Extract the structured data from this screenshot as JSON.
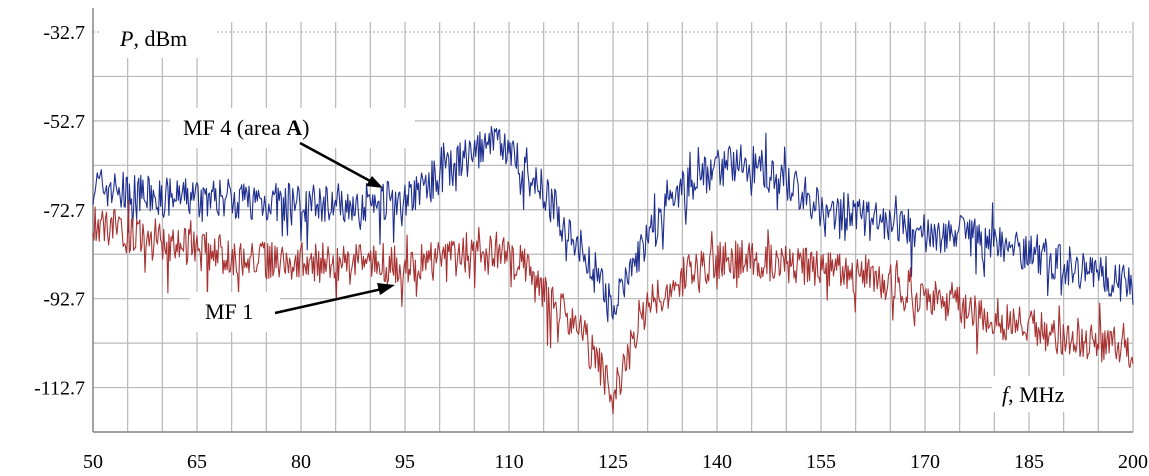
{
  "chart_data": {
    "type": "line",
    "x_range": [
      50,
      200
    ],
    "y_range": [
      -122.7,
      -32.7
    ],
    "x_ticks": [
      "50",
      "65",
      "80",
      "95",
      "110",
      "125",
      "140",
      "155",
      "170",
      "185",
      "200"
    ],
    "y_ticks": [
      "-32.7",
      "-52.7",
      "-72.7",
      "-92.7",
      "-112.7"
    ],
    "ylabel_var": "P",
    "ylabel_unit": ", dBm",
    "xlabel_var": "f",
    "xlabel_unit": ", MHz",
    "grid": true,
    "series": [
      {
        "name": "MF 4 (area A)",
        "color": "#1f2f8f",
        "x": [
          50,
          55,
          60,
          65,
          70,
          75,
          80,
          85,
          90,
          95,
          100,
          105,
          108,
          110,
          113,
          116,
          119,
          121,
          123,
          125,
          127,
          130,
          135,
          140,
          143,
          146,
          150,
          155,
          160,
          165,
          170,
          175,
          180,
          185,
          190,
          195,
          200
        ],
        "y": [
          -67,
          -69,
          -70,
          -70,
          -70,
          -71,
          -71,
          -71,
          -71,
          -70,
          -65,
          -60,
          -58,
          -59,
          -64,
          -71,
          -78,
          -83,
          -89,
          -96,
          -88,
          -79,
          -68,
          -63,
          -62,
          -63,
          -67,
          -72,
          -74,
          -76,
          -78,
          -78,
          -80,
          -82,
          -85,
          -87,
          -90
        ]
      },
      {
        "name": "MF 1",
        "color": "#a83232",
        "x": [
          50,
          55,
          60,
          65,
          70,
          75,
          80,
          85,
          90,
          95,
          100,
          105,
          110,
          113,
          116,
          119,
          121,
          123,
          125,
          127,
          130,
          135,
          140,
          145,
          150,
          155,
          160,
          165,
          170,
          175,
          180,
          185,
          190,
          195,
          200
        ],
        "y": [
          -75,
          -78,
          -80,
          -82,
          -83,
          -84,
          -84,
          -85,
          -85,
          -85,
          -84,
          -83,
          -83,
          -87,
          -93,
          -98,
          -102,
          -108,
          -115,
          -106,
          -94,
          -88,
          -84,
          -84,
          -85,
          -86,
          -88,
          -89,
          -92,
          -94,
          -97,
          -99,
          -101,
          -103,
          -104
        ]
      }
    ],
    "annotations": [
      {
        "label_main": "MF 4 (area ",
        "label_bold": "A",
        "label_end": ")"
      },
      {
        "label_main": "MF 1",
        "label_bold": "",
        "label_end": ""
      }
    ]
  }
}
